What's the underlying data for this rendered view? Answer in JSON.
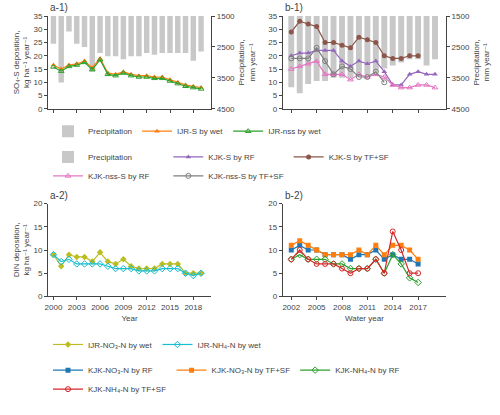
{
  "chart_data": [
    {
      "type": "line",
      "title": "a-1)",
      "x": [
        2000,
        2001,
        2002,
        2003,
        2004,
        2005,
        2006,
        2007,
        2008,
        2009,
        2010,
        2011,
        2012,
        2013,
        2014,
        2015,
        2016,
        2017,
        2018,
        2019
      ],
      "series": [
        {
          "name": "Precipitation",
          "type": "bar",
          "axis": "y2",
          "color": "#c8c8c8",
          "values": [
            2400,
            3650,
            2000,
            2400,
            2500,
            3300,
            2700,
            2800,
            2800,
            2900,
            2800,
            2800,
            2700,
            2750,
            2700,
            2700,
            2700,
            2700,
            2950,
            2650
          ]
        },
        {
          "name": "IJR-S by wet",
          "marker": "triangle-up",
          "values": [
            16.5,
            15.0,
            16.5,
            17.0,
            18.0,
            15.5,
            19.0,
            13.5,
            13.0,
            14.0,
            13.0,
            12.5,
            12.5,
            12.0,
            12.0,
            11.0,
            10.0,
            9.0,
            8.5,
            8.0
          ]
        },
        {
          "name": "IJR-nss by wet",
          "marker": "triangle-up-open",
          "values": [
            15.8,
            14.2,
            16.0,
            16.5,
            17.5,
            14.8,
            18.5,
            13.0,
            12.5,
            13.5,
            12.5,
            12.0,
            12.0,
            11.5,
            11.5,
            10.5,
            9.5,
            8.5,
            8.0,
            7.5
          ]
        }
      ],
      "xlim": [
        1999.3,
        2020.3
      ],
      "xticks": [
        2000,
        2003,
        2006,
        2009,
        2012,
        2015,
        2018
      ],
      "ylim": [
        0,
        35
      ],
      "yticks": [
        0,
        5,
        10,
        15,
        20,
        25,
        30,
        35
      ],
      "y2lim": [
        4500,
        1500
      ],
      "y2ticks": [
        1500,
        2500,
        3500,
        4500
      ],
      "ylabel": "SO₄-S deposition, kg ha⁻¹ year⁻¹",
      "y2label": "Precipitation, mm year⁻¹",
      "tick_labels": "y",
      "grid": false,
      "legend": "bottom"
    },
    {
      "type": "line",
      "title": "b-1)",
      "x": [
        2002,
        2003,
        2004,
        2005,
        2006,
        2007,
        2008,
        2009,
        2010,
        2011,
        2012,
        2013,
        2014,
        2015,
        2016,
        2017,
        2018,
        2019
      ],
      "series": [
        {
          "name": "Precipitation",
          "type": "bar",
          "axis": "y2",
          "color": "#c8c8c8",
          "values": [
            3800,
            4000,
            3700,
            3600,
            3600,
            3500,
            3500,
            3500,
            3400,
            3400,
            3300,
            3200,
            3100,
            3000,
            2900,
            2900,
            3100,
            2900
          ]
        },
        {
          "name": "KJK-S by RF",
          "marker": "triangle-up",
          "values": [
            20,
            21,
            21,
            22,
            22,
            22,
            18,
            16,
            18,
            17,
            18,
            14,
            9,
            9,
            13,
            14,
            13,
            13
          ]
        },
        {
          "name": "KJK-S by TF+SF",
          "marker": "circle",
          "values": [
            29,
            33,
            32,
            31,
            25,
            25,
            24,
            23,
            27,
            26,
            25,
            20,
            19,
            19,
            20,
            20,
            null,
            null
          ]
        },
        {
          "name": "KJK-nss-S by RF",
          "marker": "triangle-up-open",
          "values": [
            15,
            16,
            17,
            18,
            13,
            13,
            13,
            11,
            13,
            12,
            13,
            12,
            9,
            8,
            8,
            9,
            9,
            8
          ]
        },
        {
          "name": "KJK-nss-S by TF+SF",
          "marker": "circle-open",
          "values": [
            19,
            19,
            19,
            23,
            18,
            13,
            16,
            15,
            12,
            12,
            14,
            10,
            null,
            null,
            null,
            null,
            null,
            null
          ]
        }
      ],
      "xlim": [
        2001,
        2020.3
      ],
      "xticks": [
        2002,
        2005,
        2008,
        2011,
        2014,
        2017
      ],
      "ylim": [
        0,
        35
      ],
      "yticks": [
        0,
        5,
        10,
        15,
        20,
        25,
        30,
        35
      ],
      "y2lim": [
        4500,
        1500
      ],
      "y2ticks": [
        1500,
        2500,
        3500,
        4500
      ],
      "y2label": "Precipitation, mm year⁻¹",
      "tick_labels": "y",
      "grid": false,
      "legend": "bottom"
    },
    {
      "type": "line",
      "title": "a-2)",
      "x": [
        2000,
        2001,
        2002,
        2003,
        2004,
        2005,
        2006,
        2007,
        2008,
        2009,
        2010,
        2011,
        2012,
        2013,
        2014,
        2015,
        2016,
        2017,
        2018,
        2019
      ],
      "series": [
        {
          "name": "IJR-NO₃-N by wet",
          "marker": "diamond",
          "values": [
            9.0,
            6.5,
            9.0,
            8.5,
            8.5,
            7.5,
            9.5,
            7.5,
            7.0,
            8.0,
            6.5,
            6.0,
            6.0,
            6.0,
            7.0,
            7.0,
            7.0,
            5.0,
            5.0,
            5.0
          ]
        },
        {
          "name": "IJR-NH₄-N by wet",
          "marker": "diamond-open",
          "values": [
            9.0,
            7.5,
            8.0,
            7.0,
            7.0,
            7.0,
            7.0,
            6.5,
            6.0,
            6.0,
            6.0,
            5.5,
            5.5,
            5.5,
            6.0,
            6.0,
            6.0,
            5.0,
            4.5,
            5.0
          ]
        }
      ],
      "xlim": [
        1999.3,
        2020.3
      ],
      "xticks": [
        2000,
        2003,
        2006,
        2009,
        2012,
        2015,
        2018
      ],
      "ylim": [
        0,
        20
      ],
      "yticks": [
        0,
        5,
        10,
        15,
        20
      ],
      "xlabel": "Year",
      "ylabel": "DIN deposition, kg ha⁻¹ year⁻¹",
      "grid": false,
      "legend": "bottom"
    },
    {
      "type": "line",
      "title": "b-2)",
      "x": [
        2002,
        2003,
        2004,
        2005,
        2006,
        2007,
        2008,
        2009,
        2010,
        2011,
        2012,
        2013,
        2014,
        2015,
        2016,
        2017,
        2018,
        2019
      ],
      "series": [
        {
          "name": "KJK-NO₃-N by RF",
          "marker": "square",
          "values": [
            10,
            11,
            10,
            10,
            9,
            9,
            9,
            8,
            9,
            9,
            10,
            8,
            9,
            8,
            8,
            7,
            null,
            null
          ]
        },
        {
          "name": "KJK-NO₃-N by TF+SF",
          "marker": "square",
          "values": [
            11,
            12,
            11,
            10,
            9,
            9,
            9,
            9,
            10,
            9,
            11,
            9,
            11,
            11,
            10,
            8,
            null,
            null
          ]
        },
        {
          "name": "KJK-NH₄-N by RF",
          "marker": "diamond-open",
          "values": [
            8,
            9,
            8,
            8,
            8,
            7,
            7,
            6,
            6,
            6,
            8,
            5,
            9,
            7,
            4,
            3,
            null,
            null
          ]
        },
        {
          "name": "KJK-NH₄-N by TF+SF",
          "marker": "circle-open",
          "values": [
            8,
            10,
            8,
            7,
            7,
            7,
            6,
            5,
            6,
            6,
            8,
            5,
            14,
            10,
            5,
            5,
            null,
            null
          ]
        }
      ],
      "xlim": [
        2001,
        2020.3
      ],
      "xticks": [
        2002,
        2005,
        2008,
        2011,
        2014,
        2017
      ],
      "ylim": [
        0,
        20
      ],
      "yticks": [
        0,
        5,
        10,
        15,
        20
      ],
      "xlabel": "Water year",
      "grid": false,
      "legend": "bottom"
    }
  ]
}
